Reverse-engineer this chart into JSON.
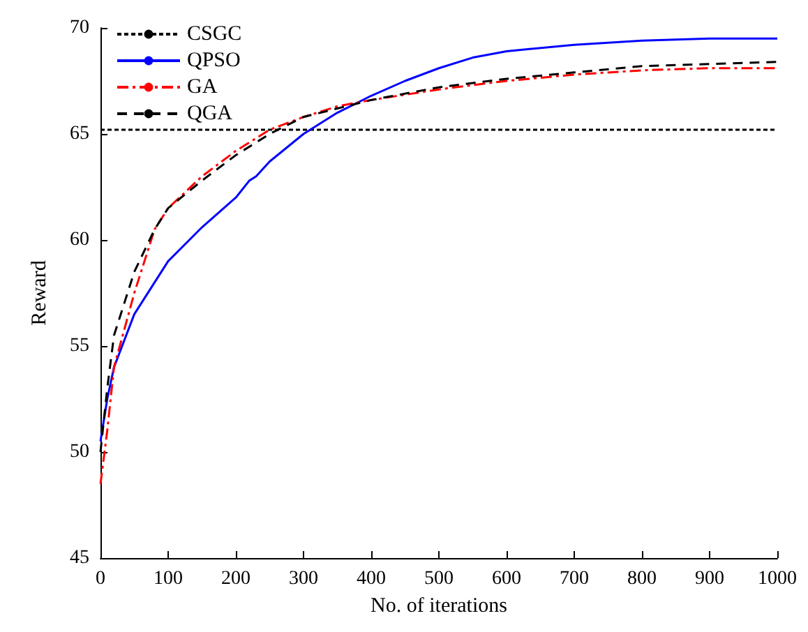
{
  "chart_data": {
    "type": "line",
    "xlabel": "No. of iterations",
    "ylabel": "Reward",
    "xlim": [
      0,
      1000
    ],
    "xticks": [
      0,
      100,
      200,
      300,
      400,
      500,
      600,
      700,
      800,
      900,
      1000
    ],
    "ylim": [
      45,
      70
    ],
    "yticks": [
      45,
      50,
      55,
      60,
      65,
      70
    ],
    "grid": false,
    "legend": "top left",
    "marker": "none",
    "series": [
      {
        "name": "CSGC",
        "color": "#000000",
        "line_style": "dotted",
        "x": [
          0,
          1000
        ],
        "values": [
          65.2,
          65.2
        ]
      },
      {
        "name": "QPSO",
        "color": "#0000ff",
        "line_style": "solid",
        "x": [
          0,
          10,
          20,
          50,
          100,
          150,
          200,
          220,
          230,
          250,
          300,
          350,
          400,
          450,
          500,
          550,
          600,
          700,
          800,
          900,
          1000
        ],
        "values": [
          50.5,
          52.5,
          54,
          56.5,
          59,
          60.6,
          62,
          62.8,
          63,
          63.7,
          65,
          66,
          66.8,
          67.5,
          68.1,
          68.6,
          68.9,
          69.2,
          69.4,
          69.5,
          69.5
        ]
      },
      {
        "name": "GA",
        "color": "#ff0000",
        "line_style": "dashdot",
        "x": [
          0,
          10,
          20,
          50,
          80,
          100,
          150,
          200,
          250,
          300,
          350,
          400,
          500,
          600,
          700,
          800,
          900,
          1000
        ],
        "values": [
          48.5,
          51,
          54,
          57.5,
          60.5,
          61.5,
          63,
          64.2,
          65.2,
          65.8,
          66.3,
          66.6,
          67.1,
          67.5,
          67.8,
          68,
          68.1,
          68.1
        ]
      },
      {
        "name": "QGA",
        "color": "#000000",
        "line_style": "dashed",
        "x": [
          0,
          10,
          20,
          50,
          80,
          100,
          150,
          200,
          250,
          300,
          350,
          400,
          500,
          600,
          700,
          800,
          900,
          1000
        ],
        "values": [
          50,
          53,
          55.5,
          58.5,
          60.5,
          61.5,
          62.8,
          64,
          65,
          65.8,
          66.2,
          66.6,
          67.2,
          67.6,
          67.9,
          68.2,
          68.3,
          68.4
        ]
      }
    ]
  }
}
